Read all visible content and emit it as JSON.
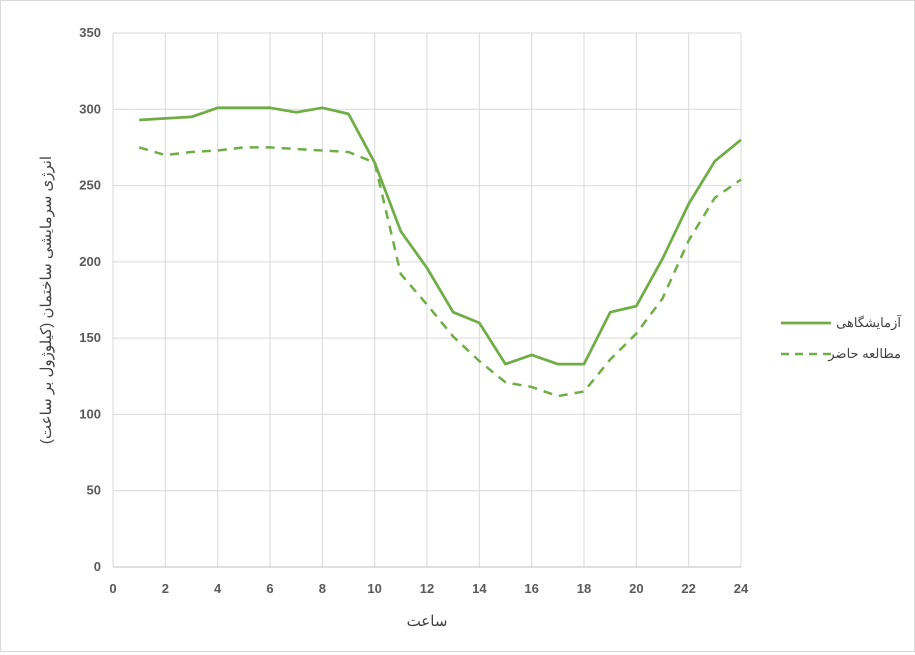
{
  "chart_data": {
    "type": "line",
    "xlabel": "ساعت",
    "ylabel": "انرژی سرمایشی ساختمان (کیلوژول بر ساعت)",
    "xlim": [
      0,
      24
    ],
    "ylim": [
      0,
      350
    ],
    "xticks": [
      "0",
      "2",
      "4",
      "6",
      "8",
      "10",
      "12",
      "14",
      "16",
      "18",
      "20",
      "22",
      "24"
    ],
    "yticks": [
      "0",
      "50",
      "100",
      "150",
      "200",
      "250",
      "300",
      "350"
    ],
    "grid": true,
    "legend_position": "right",
    "x": [
      1,
      2,
      3,
      4,
      5,
      6,
      7,
      8,
      9,
      10,
      11,
      12,
      13,
      14,
      15,
      16,
      17,
      18,
      19,
      20,
      21,
      22,
      23,
      24
    ],
    "series": [
      {
        "name": "آزمایشگاهی",
        "style": "solid",
        "color": "#70ad47",
        "values": [
          293,
          294,
          295,
          301,
          301,
          301,
          298,
          301,
          297,
          265,
          220,
          196,
          167,
          160,
          133,
          139,
          133,
          133,
          167,
          171,
          202,
          238,
          266,
          280
        ]
      },
      {
        "name": "مطالعه حاضر",
        "style": "dashed",
        "color": "#70ad47",
        "values": [
          275,
          270,
          272,
          273,
          275,
          275,
          274,
          273,
          272,
          265,
          192,
          172,
          151,
          135,
          121,
          118,
          112,
          115,
          136,
          153,
          176,
          214,
          242,
          254
        ]
      }
    ]
  }
}
